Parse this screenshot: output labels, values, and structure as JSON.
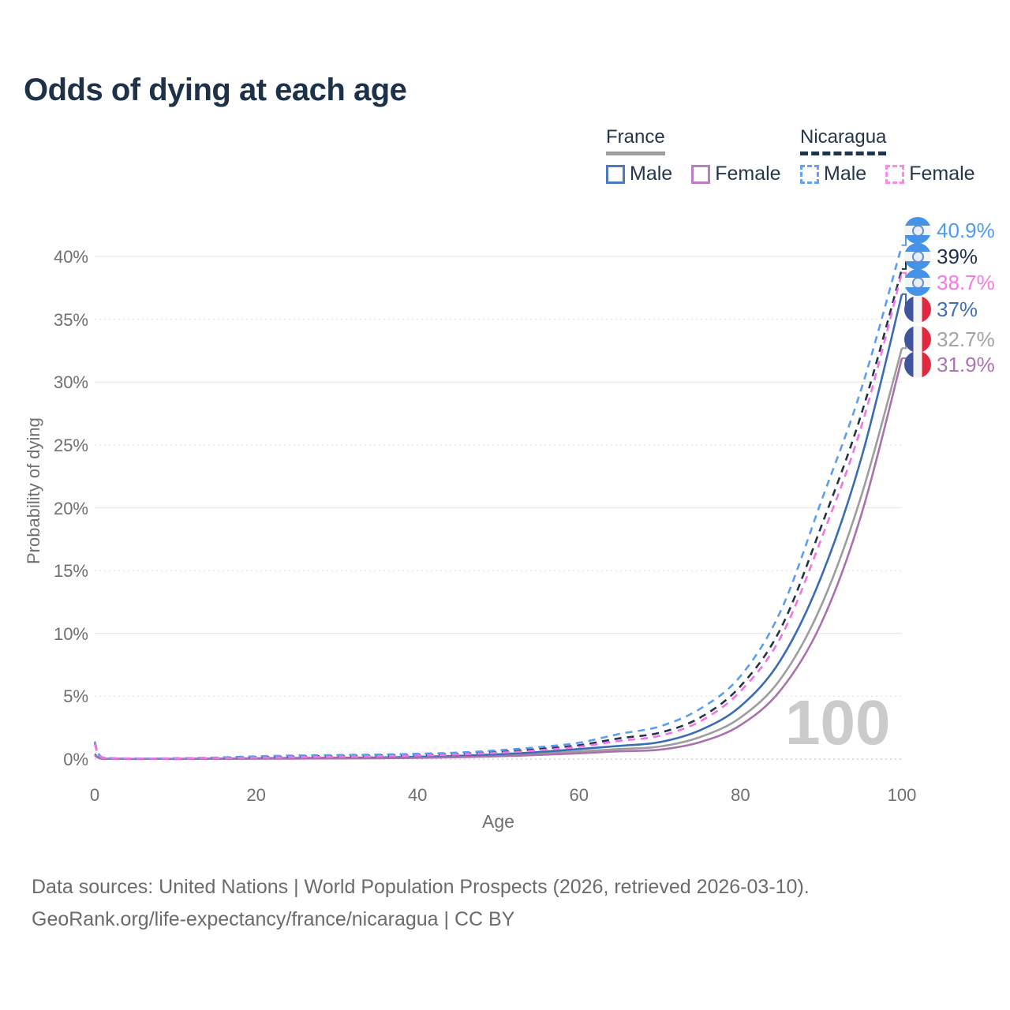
{
  "title": "Odds of dying at each age",
  "legend": {
    "france": {
      "label": "France",
      "male": "Male",
      "female": "Female"
    },
    "nicaragua": {
      "label": "Nicaragua",
      "male": "Male",
      "female": "Female"
    }
  },
  "axes": {
    "y_title": "Probability of dying",
    "x_title": "Age"
  },
  "watermark": "100",
  "footer": {
    "line1": "Data sources: United Nations | World Population Prospects (2026, retrieved 2026-03-10).",
    "line2": "GeoRank.org/life-expectancy/france/nicaragua | CC BY"
  },
  "chart_data": {
    "type": "line",
    "title": "Odds of dying at each age",
    "xlabel": "Age",
    "ylabel": "Probability of dying",
    "x_ticks": [
      0,
      20,
      40,
      60,
      80,
      100
    ],
    "y_ticks_pct": [
      0,
      5,
      10,
      15,
      20,
      25,
      30,
      35,
      40
    ],
    "x_range": [
      0,
      100
    ],
    "y_range_pct": [
      0,
      42.5
    ],
    "grid": "horizontal",
    "legend_position": "top-right",
    "ages": [
      0,
      1,
      5,
      10,
      15,
      20,
      25,
      30,
      35,
      40,
      45,
      50,
      55,
      60,
      65,
      70,
      75,
      80,
      85,
      90,
      95,
      100
    ],
    "series": [
      {
        "id": "nicaragua-male",
        "country": "Nicaragua",
        "sex": "Male",
        "line_style": "dashed",
        "color": "#5b9df2",
        "values": [
          1.4,
          0.12,
          0.05,
          0.06,
          0.12,
          0.22,
          0.28,
          0.32,
          0.36,
          0.42,
          0.52,
          0.7,
          0.95,
          1.3,
          2.0,
          2.6,
          4.0,
          6.6,
          11.8,
          20.5,
          29.5,
          40.9
        ],
        "end_label": "40.9%",
        "end_label_color": "#4d9bf0",
        "flag": "nicaragua"
      },
      {
        "id": "nicaragua-total",
        "country": "Nicaragua",
        "sex": "Both",
        "line_style": "dashed",
        "color": "#22344a",
        "values": [
          1.3,
          0.11,
          0.04,
          0.05,
          0.09,
          0.16,
          0.21,
          0.25,
          0.29,
          0.34,
          0.43,
          0.58,
          0.8,
          1.1,
          1.65,
          2.1,
          3.3,
          5.8,
          10.4,
          18.5,
          27.5,
          39.0
        ],
        "end_label": "39%",
        "end_label_color": "#22304a",
        "flag": "nicaragua"
      },
      {
        "id": "nicaragua-female",
        "country": "Nicaragua",
        "sex": "Female",
        "line_style": "dashed",
        "color": "#f472e2",
        "values": [
          1.2,
          0.1,
          0.04,
          0.04,
          0.07,
          0.11,
          0.15,
          0.19,
          0.23,
          0.28,
          0.37,
          0.5,
          0.7,
          0.98,
          1.45,
          1.85,
          3.0,
          5.4,
          9.7,
          17.5,
          26.5,
          38.7
        ],
        "end_label": "38.7%",
        "end_label_color": "#f678e0",
        "flag": "nicaragua"
      },
      {
        "id": "france-male",
        "country": "France",
        "sex": "Male",
        "line_style": "solid",
        "color": "#3a6cb5",
        "values": [
          0.4,
          0.03,
          0.01,
          0.01,
          0.03,
          0.06,
          0.08,
          0.1,
          0.13,
          0.18,
          0.26,
          0.38,
          0.56,
          0.8,
          1.05,
          1.35,
          2.3,
          4.2,
          7.9,
          14.5,
          24.0,
          37.0
        ],
        "end_label": "37%",
        "end_label_color": "#3f6fba",
        "flag": "france"
      },
      {
        "id": "france-total",
        "country": "France",
        "sex": "Both",
        "line_style": "solid",
        "color": "#9d9d9d",
        "values": [
          0.35,
          0.03,
          0.01,
          0.01,
          0.02,
          0.04,
          0.06,
          0.08,
          0.1,
          0.14,
          0.2,
          0.29,
          0.43,
          0.61,
          0.8,
          1.0,
          1.75,
          3.3,
          6.4,
          12.2,
          21.0,
          32.7
        ],
        "end_label": "32.7%",
        "end_label_color": "#a3a3a3",
        "flag": "france"
      },
      {
        "id": "france-female",
        "country": "France",
        "sex": "Female",
        "line_style": "solid",
        "color": "#a972ae",
        "values": [
          0.3,
          0.02,
          0.01,
          0.01,
          0.02,
          0.03,
          0.04,
          0.05,
          0.07,
          0.1,
          0.15,
          0.22,
          0.33,
          0.46,
          0.62,
          0.75,
          1.35,
          2.7,
          5.5,
          10.8,
          19.5,
          31.9
        ],
        "end_label": "31.9%",
        "end_label_color": "#ab74b4",
        "flag": "france"
      }
    ]
  }
}
